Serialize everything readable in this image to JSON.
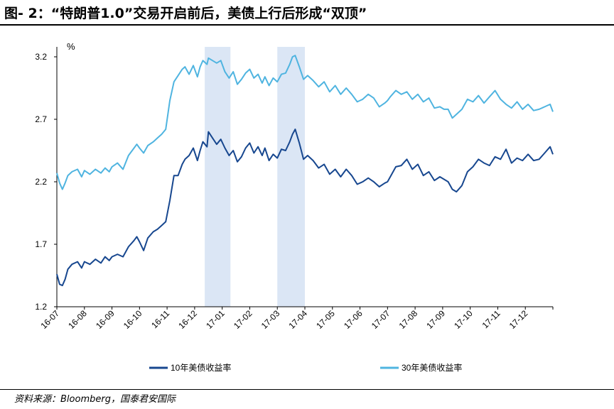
{
  "title": "图- 2：“特朗普1.0”交易开启前后，美债上行后形成“双顶”",
  "source": "资料来源：Bloomberg，国泰君安国际",
  "chart_data": {
    "type": "line",
    "title": "“特朗普1.0”交易开启前后，美债上行后形成“双顶”",
    "ylabel": "%",
    "xlabel": "",
    "ylim": [
      1.2,
      3.2
    ],
    "yticks": [
      "1.2",
      "1.7",
      "2.2",
      "2.7",
      "3.2"
    ],
    "x_ticks": [
      "16-07",
      "16-08",
      "16-09",
      "16-10",
      "16-11",
      "16-12",
      "17-01",
      "17-02",
      "17-03",
      "17-04",
      "17-05",
      "17-06",
      "17-07",
      "17-08",
      "17-09",
      "17-10",
      "17-11",
      "17-12"
    ],
    "grid": false,
    "legend_position": "bottom",
    "shaded_periods": [
      {
        "start": "2016-12-12",
        "end": "2017-01-10"
      },
      {
        "start": "2017-03-01",
        "end": "2017-03-31"
      }
    ],
    "x_unit": "months since 2016-07-01",
    "series": [
      {
        "name": "10年美债收益率",
        "color": "#17478f",
        "x": [
          0.0,
          0.1,
          0.2,
          0.3,
          0.4,
          0.55,
          0.75,
          0.9,
          1.0,
          1.2,
          1.4,
          1.6,
          1.75,
          1.9,
          2.0,
          2.2,
          2.4,
          2.6,
          2.8,
          2.9,
          3.0,
          3.15,
          3.3,
          3.5,
          3.65,
          3.8,
          3.95,
          4.1,
          4.25,
          4.4,
          4.55,
          4.65,
          4.8,
          4.95,
          5.1,
          5.2,
          5.3,
          5.45,
          5.5,
          5.65,
          5.8,
          5.95,
          6.1,
          6.25,
          6.4,
          6.55,
          6.7,
          6.85,
          7.0,
          7.15,
          7.3,
          7.45,
          7.55,
          7.7,
          7.85,
          8.0,
          8.15,
          8.3,
          8.45,
          8.55,
          8.65,
          8.8,
          8.95,
          9.1,
          9.3,
          9.5,
          9.7,
          9.9,
          10.1,
          10.3,
          10.5,
          10.7,
          10.9,
          11.1,
          11.3,
          11.5,
          11.7,
          11.9,
          12.0,
          12.1,
          12.3,
          12.5,
          12.7,
          12.9,
          13.1,
          13.3,
          13.5,
          13.7,
          13.9,
          14.05,
          14.2,
          14.35,
          14.5,
          14.7,
          14.9,
          15.1,
          15.3,
          15.5,
          15.7,
          15.9,
          16.1,
          16.3,
          16.5,
          16.7,
          16.9,
          17.1,
          17.3,
          17.5,
          17.7,
          17.9,
          18.0
        ],
        "y": [
          1.46,
          1.38,
          1.37,
          1.42,
          1.5,
          1.54,
          1.56,
          1.51,
          1.56,
          1.54,
          1.58,
          1.55,
          1.6,
          1.57,
          1.6,
          1.62,
          1.6,
          1.68,
          1.73,
          1.76,
          1.72,
          1.65,
          1.75,
          1.8,
          1.82,
          1.85,
          1.88,
          2.05,
          2.25,
          2.25,
          2.34,
          2.38,
          2.41,
          2.47,
          2.37,
          2.45,
          2.52,
          2.48,
          2.6,
          2.55,
          2.5,
          2.54,
          2.47,
          2.41,
          2.45,
          2.36,
          2.4,
          2.47,
          2.51,
          2.43,
          2.48,
          2.41,
          2.47,
          2.37,
          2.42,
          2.39,
          2.46,
          2.45,
          2.52,
          2.58,
          2.62,
          2.51,
          2.38,
          2.41,
          2.37,
          2.31,
          2.34,
          2.26,
          2.3,
          2.24,
          2.3,
          2.25,
          2.18,
          2.2,
          2.23,
          2.2,
          2.16,
          2.19,
          2.2,
          2.24,
          2.32,
          2.33,
          2.38,
          2.3,
          2.34,
          2.25,
          2.28,
          2.21,
          2.24,
          2.22,
          2.2,
          2.14,
          2.12,
          2.17,
          2.28,
          2.32,
          2.38,
          2.35,
          2.33,
          2.4,
          2.38,
          2.46,
          2.35,
          2.39,
          2.37,
          2.42,
          2.37,
          2.38,
          2.43,
          2.48,
          2.42
        ]
      },
      {
        "name": "30年美债收益率",
        "color": "#4fb4e0",
        "x": [
          0.0,
          0.1,
          0.2,
          0.3,
          0.4,
          0.55,
          0.75,
          0.9,
          1.0,
          1.2,
          1.4,
          1.6,
          1.75,
          1.9,
          2.0,
          2.2,
          2.4,
          2.6,
          2.8,
          2.9,
          3.0,
          3.15,
          3.3,
          3.5,
          3.65,
          3.8,
          3.95,
          4.1,
          4.25,
          4.4,
          4.55,
          4.65,
          4.8,
          4.95,
          5.1,
          5.2,
          5.3,
          5.45,
          5.5,
          5.65,
          5.8,
          5.95,
          6.1,
          6.25,
          6.4,
          6.55,
          6.7,
          6.85,
          7.0,
          7.15,
          7.3,
          7.45,
          7.55,
          7.7,
          7.85,
          8.0,
          8.15,
          8.3,
          8.45,
          8.55,
          8.65,
          8.8,
          8.95,
          9.1,
          9.3,
          9.5,
          9.7,
          9.9,
          10.1,
          10.3,
          10.5,
          10.7,
          10.9,
          11.1,
          11.3,
          11.5,
          11.7,
          11.9,
          12.0,
          12.1,
          12.3,
          12.5,
          12.7,
          12.9,
          13.1,
          13.3,
          13.5,
          13.7,
          13.9,
          14.05,
          14.2,
          14.35,
          14.5,
          14.7,
          14.9,
          15.1,
          15.3,
          15.5,
          15.7,
          15.9,
          16.1,
          16.3,
          16.5,
          16.7,
          16.9,
          17.1,
          17.3,
          17.5,
          17.7,
          17.9,
          18.0
        ],
        "y": [
          2.27,
          2.19,
          2.14,
          2.19,
          2.25,
          2.28,
          2.3,
          2.24,
          2.29,
          2.26,
          2.3,
          2.27,
          2.31,
          2.28,
          2.32,
          2.35,
          2.3,
          2.41,
          2.47,
          2.5,
          2.47,
          2.43,
          2.49,
          2.52,
          2.55,
          2.58,
          2.62,
          2.85,
          3.0,
          3.05,
          3.1,
          3.12,
          3.06,
          3.13,
          3.04,
          3.12,
          3.17,
          3.14,
          3.19,
          3.17,
          3.15,
          3.17,
          3.08,
          3.03,
          3.08,
          2.98,
          3.02,
          3.07,
          3.1,
          3.03,
          3.06,
          2.99,
          3.04,
          2.97,
          3.03,
          3.0,
          3.06,
          3.07,
          3.14,
          3.2,
          3.21,
          3.12,
          3.02,
          3.05,
          3.01,
          2.96,
          3.0,
          2.92,
          2.97,
          2.9,
          2.95,
          2.9,
          2.84,
          2.86,
          2.9,
          2.87,
          2.8,
          2.83,
          2.85,
          2.88,
          2.93,
          2.9,
          2.92,
          2.86,
          2.9,
          2.84,
          2.87,
          2.79,
          2.8,
          2.78,
          2.78,
          2.71,
          2.74,
          2.78,
          2.86,
          2.84,
          2.89,
          2.83,
          2.88,
          2.93,
          2.86,
          2.82,
          2.79,
          2.84,
          2.78,
          2.82,
          2.77,
          2.78,
          2.8,
          2.82,
          2.76
        ]
      }
    ]
  }
}
